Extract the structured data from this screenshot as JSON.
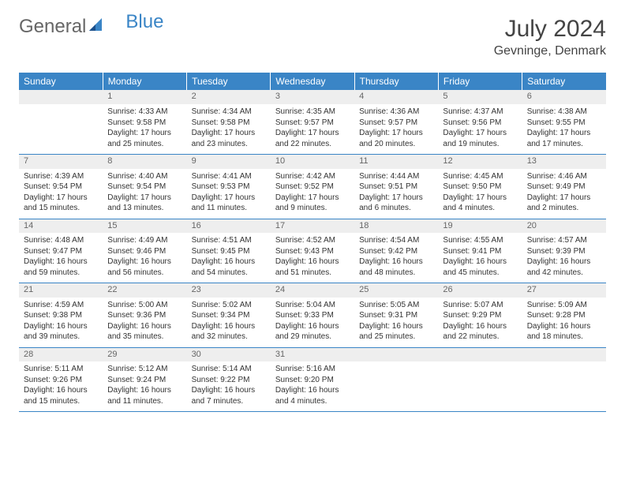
{
  "logo": {
    "part1": "General",
    "part2": "Blue"
  },
  "title": "July 2024",
  "location": "Gevninge, Denmark",
  "colors": {
    "header_bg": "#3a85c6",
    "header_text": "#ffffff",
    "daynum_bg": "#eeeeee",
    "border": "#3a85c6"
  },
  "daysOfWeek": [
    "Sunday",
    "Monday",
    "Tuesday",
    "Wednesday",
    "Thursday",
    "Friday",
    "Saturday"
  ],
  "weeks": [
    [
      {
        "num": "",
        "sunrise": "",
        "sunset": "",
        "daylight": ""
      },
      {
        "num": "1",
        "sunrise": "Sunrise: 4:33 AM",
        "sunset": "Sunset: 9:58 PM",
        "daylight": "Daylight: 17 hours and 25 minutes."
      },
      {
        "num": "2",
        "sunrise": "Sunrise: 4:34 AM",
        "sunset": "Sunset: 9:58 PM",
        "daylight": "Daylight: 17 hours and 23 minutes."
      },
      {
        "num": "3",
        "sunrise": "Sunrise: 4:35 AM",
        "sunset": "Sunset: 9:57 PM",
        "daylight": "Daylight: 17 hours and 22 minutes."
      },
      {
        "num": "4",
        "sunrise": "Sunrise: 4:36 AM",
        "sunset": "Sunset: 9:57 PM",
        "daylight": "Daylight: 17 hours and 20 minutes."
      },
      {
        "num": "5",
        "sunrise": "Sunrise: 4:37 AM",
        "sunset": "Sunset: 9:56 PM",
        "daylight": "Daylight: 17 hours and 19 minutes."
      },
      {
        "num": "6",
        "sunrise": "Sunrise: 4:38 AM",
        "sunset": "Sunset: 9:55 PM",
        "daylight": "Daylight: 17 hours and 17 minutes."
      }
    ],
    [
      {
        "num": "7",
        "sunrise": "Sunrise: 4:39 AM",
        "sunset": "Sunset: 9:54 PM",
        "daylight": "Daylight: 17 hours and 15 minutes."
      },
      {
        "num": "8",
        "sunrise": "Sunrise: 4:40 AM",
        "sunset": "Sunset: 9:54 PM",
        "daylight": "Daylight: 17 hours and 13 minutes."
      },
      {
        "num": "9",
        "sunrise": "Sunrise: 4:41 AM",
        "sunset": "Sunset: 9:53 PM",
        "daylight": "Daylight: 17 hours and 11 minutes."
      },
      {
        "num": "10",
        "sunrise": "Sunrise: 4:42 AM",
        "sunset": "Sunset: 9:52 PM",
        "daylight": "Daylight: 17 hours and 9 minutes."
      },
      {
        "num": "11",
        "sunrise": "Sunrise: 4:44 AM",
        "sunset": "Sunset: 9:51 PM",
        "daylight": "Daylight: 17 hours and 6 minutes."
      },
      {
        "num": "12",
        "sunrise": "Sunrise: 4:45 AM",
        "sunset": "Sunset: 9:50 PM",
        "daylight": "Daylight: 17 hours and 4 minutes."
      },
      {
        "num": "13",
        "sunrise": "Sunrise: 4:46 AM",
        "sunset": "Sunset: 9:49 PM",
        "daylight": "Daylight: 17 hours and 2 minutes."
      }
    ],
    [
      {
        "num": "14",
        "sunrise": "Sunrise: 4:48 AM",
        "sunset": "Sunset: 9:47 PM",
        "daylight": "Daylight: 16 hours and 59 minutes."
      },
      {
        "num": "15",
        "sunrise": "Sunrise: 4:49 AM",
        "sunset": "Sunset: 9:46 PM",
        "daylight": "Daylight: 16 hours and 56 minutes."
      },
      {
        "num": "16",
        "sunrise": "Sunrise: 4:51 AM",
        "sunset": "Sunset: 9:45 PM",
        "daylight": "Daylight: 16 hours and 54 minutes."
      },
      {
        "num": "17",
        "sunrise": "Sunrise: 4:52 AM",
        "sunset": "Sunset: 9:43 PM",
        "daylight": "Daylight: 16 hours and 51 minutes."
      },
      {
        "num": "18",
        "sunrise": "Sunrise: 4:54 AM",
        "sunset": "Sunset: 9:42 PM",
        "daylight": "Daylight: 16 hours and 48 minutes."
      },
      {
        "num": "19",
        "sunrise": "Sunrise: 4:55 AM",
        "sunset": "Sunset: 9:41 PM",
        "daylight": "Daylight: 16 hours and 45 minutes."
      },
      {
        "num": "20",
        "sunrise": "Sunrise: 4:57 AM",
        "sunset": "Sunset: 9:39 PM",
        "daylight": "Daylight: 16 hours and 42 minutes."
      }
    ],
    [
      {
        "num": "21",
        "sunrise": "Sunrise: 4:59 AM",
        "sunset": "Sunset: 9:38 PM",
        "daylight": "Daylight: 16 hours and 39 minutes."
      },
      {
        "num": "22",
        "sunrise": "Sunrise: 5:00 AM",
        "sunset": "Sunset: 9:36 PM",
        "daylight": "Daylight: 16 hours and 35 minutes."
      },
      {
        "num": "23",
        "sunrise": "Sunrise: 5:02 AM",
        "sunset": "Sunset: 9:34 PM",
        "daylight": "Daylight: 16 hours and 32 minutes."
      },
      {
        "num": "24",
        "sunrise": "Sunrise: 5:04 AM",
        "sunset": "Sunset: 9:33 PM",
        "daylight": "Daylight: 16 hours and 29 minutes."
      },
      {
        "num": "25",
        "sunrise": "Sunrise: 5:05 AM",
        "sunset": "Sunset: 9:31 PM",
        "daylight": "Daylight: 16 hours and 25 minutes."
      },
      {
        "num": "26",
        "sunrise": "Sunrise: 5:07 AM",
        "sunset": "Sunset: 9:29 PM",
        "daylight": "Daylight: 16 hours and 22 minutes."
      },
      {
        "num": "27",
        "sunrise": "Sunrise: 5:09 AM",
        "sunset": "Sunset: 9:28 PM",
        "daylight": "Daylight: 16 hours and 18 minutes."
      }
    ],
    [
      {
        "num": "28",
        "sunrise": "Sunrise: 5:11 AM",
        "sunset": "Sunset: 9:26 PM",
        "daylight": "Daylight: 16 hours and 15 minutes."
      },
      {
        "num": "29",
        "sunrise": "Sunrise: 5:12 AM",
        "sunset": "Sunset: 9:24 PM",
        "daylight": "Daylight: 16 hours and 11 minutes."
      },
      {
        "num": "30",
        "sunrise": "Sunrise: 5:14 AM",
        "sunset": "Sunset: 9:22 PM",
        "daylight": "Daylight: 16 hours and 7 minutes."
      },
      {
        "num": "31",
        "sunrise": "Sunrise: 5:16 AM",
        "sunset": "Sunset: 9:20 PM",
        "daylight": "Daylight: 16 hours and 4 minutes."
      },
      {
        "num": "",
        "sunrise": "",
        "sunset": "",
        "daylight": ""
      },
      {
        "num": "",
        "sunrise": "",
        "sunset": "",
        "daylight": ""
      },
      {
        "num": "",
        "sunrise": "",
        "sunset": "",
        "daylight": ""
      }
    ]
  ]
}
